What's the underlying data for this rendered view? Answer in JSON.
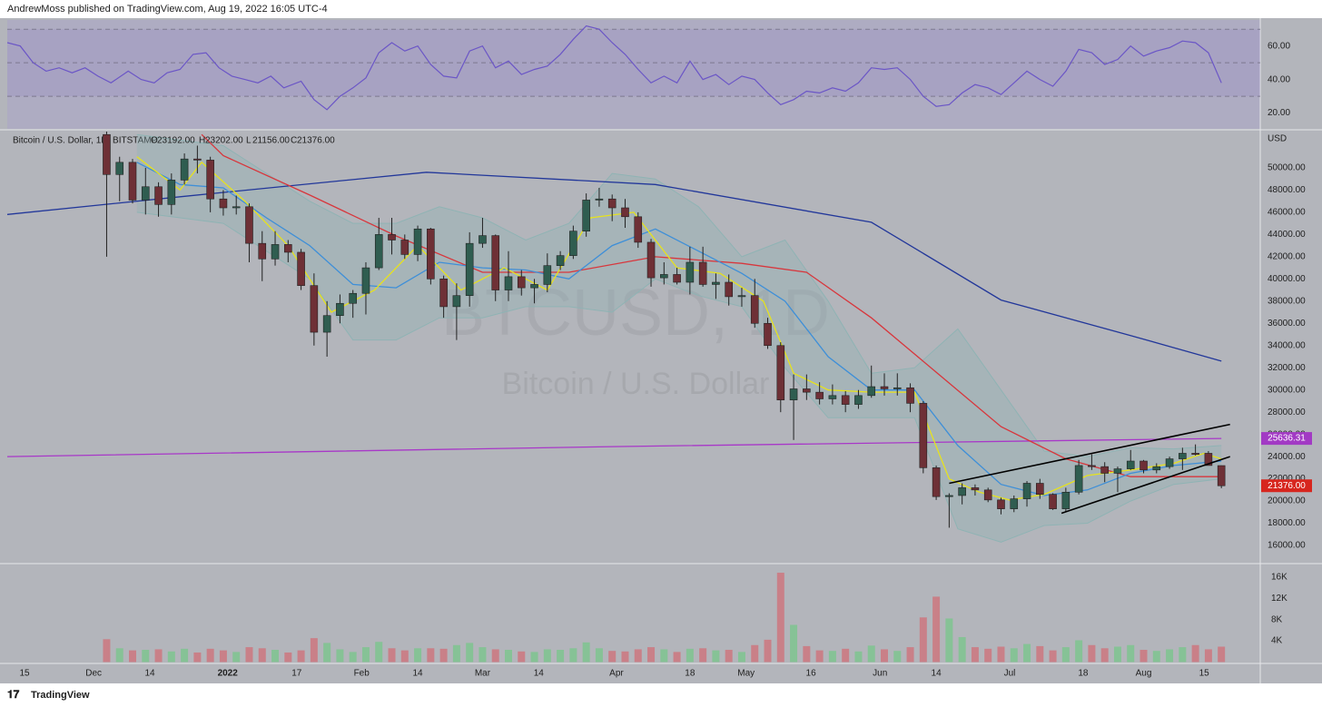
{
  "header": "AndrewMoss published on TradingView.com, Aug 19, 2022 16:05 UTC-4",
  "footer": "TradingView",
  "chart_data": {
    "type": "candlestick",
    "symbol": "Bitcoin / U.S. Dollar, 1D, BITSTAMP",
    "legend_keys": [
      "O",
      "H",
      "L",
      "C"
    ],
    "legend_values": [
      "23192.00",
      "23202.00",
      "21156.00",
      "21376.00"
    ],
    "watermark": [
      "BTCUSD, 1D",
      "Bitcoin / U.S. Dollar"
    ],
    "currency": "USD",
    "up_color": "#2f5d50",
    "down_color": "#6e3036",
    "volume_up_color": "#86c296",
    "volume_down_color": "#c98088",
    "xlim": [
      0,
      290
    ],
    "xticks": [
      {
        "value": 4,
        "label": "15"
      },
      {
        "value": 20,
        "label": "Dec"
      },
      {
        "value": 33,
        "label": "14"
      },
      {
        "value": 51,
        "label": "2022"
      },
      {
        "value": 67,
        "label": "17"
      },
      {
        "value": 82,
        "label": "Feb"
      },
      {
        "value": 95,
        "label": "14"
      },
      {
        "value": 110,
        "label": "Mar"
      },
      {
        "value": 123,
        "label": "14"
      },
      {
        "value": 141,
        "label": "Apr"
      },
      {
        "value": 158,
        "label": "18"
      },
      {
        "value": 171,
        "label": "May"
      },
      {
        "value": 186,
        "label": "16"
      },
      {
        "value": 202,
        "label": "Jun"
      },
      {
        "value": 215,
        "label": "14"
      },
      {
        "value": 232,
        "label": "Jul"
      },
      {
        "value": 249,
        "label": "18"
      },
      {
        "value": 263,
        "label": "Aug"
      },
      {
        "value": 277,
        "label": "15"
      }
    ],
    "ylim": [
      14000,
      54000
    ],
    "yticks": [
      {
        "value": 16000,
        "label": "16000.00"
      },
      {
        "value": 18000,
        "label": "18000.00"
      },
      {
        "value": 20000,
        "label": "20000.00"
      },
      {
        "value": 22000,
        "label": "22000.00"
      },
      {
        "value": 24000,
        "label": "24000.00"
      },
      {
        "value": 26000,
        "label": "26000.00"
      },
      {
        "value": 28000,
        "label": "28000.00"
      },
      {
        "value": 30000,
        "label": "30000.00"
      },
      {
        "value": 32000,
        "label": "32000.00"
      },
      {
        "value": 34000,
        "label": "34000.00"
      },
      {
        "value": 36000,
        "label": "36000.00"
      },
      {
        "value": 38000,
        "label": "38000.00"
      },
      {
        "value": 40000,
        "label": "40000.00"
      },
      {
        "value": 42000,
        "label": "42000.00"
      },
      {
        "value": 44000,
        "label": "44000.00"
      },
      {
        "value": 46000,
        "label": "46000.00"
      },
      {
        "value": 48000,
        "label": "48000.00"
      },
      {
        "value": 50000,
        "label": "50000.00"
      }
    ],
    "x": [
      23,
      26,
      29,
      32,
      35,
      38,
      41,
      44,
      47,
      50,
      53,
      56,
      59,
      62,
      65,
      68,
      71,
      74,
      77,
      80,
      83,
      86,
      89,
      92,
      95,
      98,
      101,
      104,
      107,
      110,
      113,
      116,
      119,
      122,
      125,
      128,
      131,
      134,
      137,
      140,
      143,
      146,
      149,
      152,
      155,
      158,
      161,
      164,
      167,
      170,
      173,
      176,
      179,
      182,
      185,
      188,
      191,
      194,
      197,
      200,
      203,
      206,
      209,
      212,
      215,
      218,
      221,
      224,
      227,
      230,
      233,
      236,
      239,
      242,
      245,
      248,
      251,
      254,
      257,
      260,
      263,
      266,
      269,
      272,
      275,
      278,
      281
    ],
    "open": [
      53000,
      49400,
      50500,
      47100,
      48300,
      46700,
      48900,
      50800,
      50700,
      47200,
      46400,
      46500,
      43200,
      41800,
      43100,
      42400,
      39400,
      35200,
      36700,
      37800,
      38700,
      41000,
      44000,
      43500,
      42200,
      44500,
      40000,
      37500,
      38500,
      43200,
      43900,
      39000,
      40200,
      39200,
      39500,
      41200,
      42100,
      44300,
      47100,
      47200,
      46400,
      45600,
      43300,
      40100,
      40400,
      39700,
      41500,
      39500,
      39700,
      38400,
      38500,
      36000,
      34000,
      29100,
      30100,
      29800,
      29200,
      29500,
      28700,
      29500,
      30300,
      30100,
      30200,
      28800,
      23000,
      20400,
      20500,
      21200,
      21000,
      20100,
      19300,
      20200,
      21600,
      20600,
      19300,
      20800,
      23200,
      23100,
      22500,
      22900,
      23600,
      22800,
      23100,
      23800,
      24300,
      24300,
      23192
    ],
    "high": [
      53500,
      51000,
      50800,
      50000,
      48700,
      49500,
      51300,
      52000,
      51000,
      48000,
      47500,
      46800,
      44300,
      44300,
      43500,
      42700,
      40500,
      38000,
      38600,
      39000,
      41500,
      45500,
      45500,
      44000,
      44800,
      44600,
      40300,
      39600,
      44200,
      45500,
      44000,
      42500,
      40800,
      40000,
      42300,
      42500,
      44800,
      47700,
      48200,
      47600,
      47200,
      46000,
      43600,
      41500,
      41000,
      42900,
      42900,
      40500,
      40400,
      39200,
      40000,
      36500,
      34300,
      31400,
      31400,
      30700,
      30500,
      29900,
      30000,
      32200,
      31500,
      31500,
      30600,
      29000,
      23200,
      20700,
      21600,
      21500,
      21200,
      20300,
      20500,
      21800,
      22000,
      20700,
      21200,
      23700,
      24200,
      23500,
      23100,
      24600,
      23700,
      23400,
      24000,
      24800,
      25100,
      24500,
      23202
    ],
    "low": [
      42000,
      47000,
      46800,
      45800,
      45600,
      45800,
      48500,
      49500,
      46000,
      45700,
      45800,
      41500,
      39800,
      41200,
      41500,
      39000,
      34000,
      33000,
      36000,
      36500,
      36800,
      40800,
      42200,
      41800,
      41600,
      39500,
      36500,
      34500,
      37500,
      42800,
      38000,
      38000,
      38500,
      37800,
      38800,
      40800,
      41800,
      43800,
      46500,
      45200,
      44600,
      42800,
      39300,
      39500,
      39500,
      38600,
      39300,
      38200,
      37600,
      37500,
      35600,
      33700,
      28000,
      25500,
      29100,
      28700,
      28700,
      28000,
      28300,
      29300,
      29500,
      29500,
      28000,
      22500,
      20100,
      17600,
      19700,
      20500,
      19900,
      18800,
      19000,
      19500,
      20200,
      19200,
      19000,
      20600,
      22800,
      21700,
      20800,
      22800,
      22500,
      22500,
      22900,
      22800,
      24100,
      23200,
      21156
    ],
    "close": [
      49400,
      50500,
      47100,
      48300,
      46700,
      48900,
      50800,
      50700,
      47200,
      46400,
      46500,
      43200,
      41800,
      43100,
      42400,
      39400,
      35200,
      36700,
      37800,
      38700,
      41000,
      44000,
      43500,
      42200,
      44500,
      40000,
      37500,
      38500,
      43200,
      43900,
      39000,
      40200,
      39200,
      39500,
      41200,
      42100,
      44300,
      47100,
      47200,
      46400,
      45600,
      43300,
      40100,
      40400,
      39700,
      41500,
      39500,
      39700,
      38400,
      38500,
      36000,
      34000,
      29100,
      30100,
      29800,
      29200,
      29500,
      28700,
      29500,
      30300,
      30100,
      30200,
      28800,
      23000,
      20400,
      20500,
      21200,
      21000,
      20100,
      19300,
      20200,
      21600,
      20600,
      19300,
      20800,
      23200,
      23100,
      22500,
      22900,
      23600,
      22800,
      23100,
      23800,
      24300,
      24200,
      23200,
      21376
    ],
    "volumes": [
      4300,
      2600,
      2200,
      2300,
      2400,
      2000,
      2500,
      1800,
      2500,
      2200,
      1900,
      2800,
      2600,
      2300,
      1800,
      2200,
      4500,
      3600,
      2400,
      1900,
      2800,
      3800,
      2600,
      2200,
      2600,
      2600,
      2500,
      3200,
      3600,
      2800,
      2400,
      2300,
      2000,
      1900,
      2400,
      2300,
      2600,
      3700,
      2600,
      2100,
      2000,
      2400,
      2800,
      2400,
      1900,
      2500,
      2600,
      2200,
      2300,
      1900,
      3200,
      4200,
      16800,
      7000,
      3000,
      2200,
      2100,
      2500,
      2000,
      3100,
      2400,
      2100,
      2800,
      8400,
      12300,
      8200,
      4700,
      2800,
      2500,
      2900,
      2600,
      3400,
      3000,
      2200,
      2800,
      4100,
      3200,
      2600,
      2900,
      3200,
      2300,
      2100,
      2400,
      2800,
      3200,
      2400,
      2900
    ],
    "band": {
      "color": "#8fb3b4",
      "x": [
        30,
        50,
        70,
        80,
        90,
        100,
        110,
        120,
        130,
        140,
        150,
        160,
        170,
        180,
        190,
        200,
        210,
        220,
        230,
        240,
        250,
        260,
        270,
        281
      ],
      "upper": [
        53000,
        52000,
        47000,
        45000,
        45000,
        46500,
        45500,
        43500,
        45000,
        49500,
        49000,
        46500,
        42000,
        43500,
        38000,
        31500,
        32000,
        35500,
        30000,
        24500,
        24000,
        24800,
        24700,
        25000
      ],
      "lower": [
        46000,
        45000,
        40000,
        34500,
        34500,
        36500,
        36500,
        37500,
        37500,
        37000,
        40000,
        38500,
        37500,
        32000,
        27500,
        27500,
        27500,
        17500,
        16300,
        17800,
        18000,
        20000,
        21500,
        22000
      ]
    },
    "overlays": [
      {
        "color": "#a838c8",
        "x": [
          0,
          140,
          281
        ],
        "values": [
          24000,
          24900,
          25636.31
        ]
      },
      {
        "color": "#22379a",
        "x": [
          0,
          40,
          97,
          150,
          200,
          230,
          260,
          281
        ],
        "values": [
          45800,
          47400,
          49600,
          48500,
          45100,
          38100,
          34900,
          32600
        ]
      },
      {
        "color": "#d8363c",
        "x": [
          45,
          50,
          70,
          90,
          110,
          130,
          150,
          170,
          185,
          200,
          215,
          230,
          245,
          260,
          281
        ],
        "values": [
          53000,
          51100,
          47550,
          43870,
          40600,
          40600,
          42000,
          41400,
          40600,
          36500,
          31600,
          26700,
          23800,
          22200,
          22200
        ]
      },
      {
        "color": "#3e8fd8",
        "x": [
          30,
          40,
          50,
          60,
          70,
          80,
          90,
          100,
          110,
          120,
          130,
          140,
          150,
          160,
          170,
          180,
          190,
          200,
          210,
          220,
          230,
          240,
          250,
          260,
          270,
          281
        ],
        "values": [
          50500,
          48500,
          48200,
          45500,
          43000,
          39500,
          39200,
          41500,
          41000,
          40800,
          40000,
          43000,
          44500,
          42500,
          40500,
          38000,
          33000,
          30000,
          30000,
          25000,
          21500,
          20500,
          21000,
          22500,
          23200,
          23600
        ]
      },
      {
        "color": "#e6e21e",
        "x": [
          30,
          40,
          45,
          55,
          65,
          75,
          85,
          95,
          105,
          115,
          125,
          135,
          145,
          155,
          165,
          175,
          182,
          190,
          200,
          210,
          218,
          225,
          232,
          240,
          250,
          260,
          270,
          277,
          281
        ],
        "values": [
          51000,
          48000,
          50500,
          47000,
          43000,
          37000,
          39000,
          43000,
          39000,
          41000,
          39000,
          45500,
          46000,
          41000,
          40500,
          38000,
          31500,
          30000,
          29800,
          29800,
          22000,
          20800,
          20100,
          20600,
          22300,
          22800,
          23400,
          24300,
          23800
        ]
      }
    ],
    "trendlines": [
      {
        "color": "#000000",
        "x": [
          218,
          283
        ],
        "values": [
          21600,
          26900
        ]
      },
      {
        "color": "#000000",
        "x": [
          244,
          283
        ],
        "values": [
          18900,
          24000
        ]
      }
    ],
    "price_labels": [
      {
        "value": 25636.31,
        "label": "25636.31",
        "color": "#a23ac4"
      },
      {
        "value": 21376,
        "label": "21376.00",
        "color": "#d7261e"
      }
    ],
    "rsi": {
      "color": "#6b56c6",
      "ylim": [
        10,
        75
      ],
      "yticks": [
        {
          "value": 20,
          "label": "20.00"
        },
        {
          "value": 40,
          "label": "40.00"
        },
        {
          "value": 60,
          "label": "60.00"
        }
      ],
      "levels": [
        30,
        50,
        70
      ],
      "x": [
        0,
        3,
        6,
        9,
        12,
        15,
        18,
        21,
        24,
        28,
        31,
        34,
        37,
        40,
        43,
        46,
        49,
        52,
        55,
        58,
        61,
        64,
        68,
        71,
        74,
        77,
        80,
        83,
        86,
        89,
        92,
        95,
        98,
        101,
        104,
        107,
        110,
        113,
        116,
        119,
        122,
        125,
        128,
        131,
        134,
        137,
        140,
        143,
        146,
        149,
        152,
        155,
        158,
        161,
        164,
        167,
        170,
        173,
        176,
        179,
        182,
        185,
        188,
        191,
        194,
        197,
        200,
        203,
        206,
        209,
        212,
        215,
        218,
        221,
        224,
        227,
        230,
        233,
        236,
        239,
        242,
        245,
        248,
        251,
        254,
        257,
        260,
        263,
        266,
        269,
        272,
        275,
        278,
        281
      ],
      "values": [
        62,
        60,
        50,
        45,
        47,
        44,
        47,
        42,
        38,
        45,
        40,
        38,
        44,
        46,
        55,
        56,
        47,
        42,
        40,
        38,
        42,
        35,
        39,
        28,
        22,
        30,
        35,
        41,
        56,
        62,
        57,
        60,
        49,
        42,
        41,
        57,
        60,
        47,
        51,
        43,
        46,
        48,
        55,
        64,
        72,
        70,
        62,
        55,
        46,
        38,
        42,
        38,
        51,
        40,
        43,
        37,
        42,
        40,
        32,
        25,
        28,
        33,
        32,
        35,
        33,
        38,
        47,
        46,
        47,
        40,
        30,
        24,
        25,
        32,
        37,
        35,
        31,
        38,
        45,
        40,
        36,
        45,
        58,
        56,
        49,
        52,
        60,
        54,
        57,
        59,
        63,
        62,
        56,
        38
      ]
    },
    "volume_axis": {
      "ylim": [
        0,
        18000
      ],
      "yticks": [
        {
          "value": 4000,
          "label": "4K"
        },
        {
          "value": 8000,
          "label": "8K"
        },
        {
          "value": 12000,
          "label": "12K"
        },
        {
          "value": 16000,
          "label": "16K"
        }
      ]
    }
  }
}
